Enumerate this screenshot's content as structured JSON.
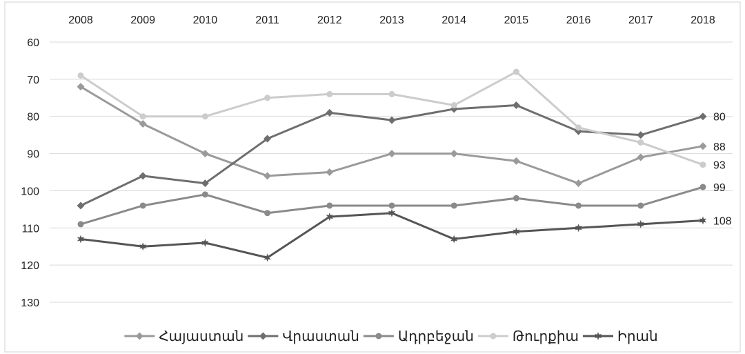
{
  "chart_data": {
    "type": "line",
    "x": [
      "2008",
      "2009",
      "2010",
      "2011",
      "2012",
      "2013",
      "2014",
      "2015",
      "2016",
      "2017",
      "2018"
    ],
    "y_ticks": [
      60,
      70,
      80,
      90,
      100,
      110,
      120,
      130
    ],
    "ylim": [
      60,
      130
    ],
    "y_inverted": true,
    "x_axis_position": "top",
    "grid": true,
    "legend_position": "bottom",
    "series": [
      {
        "name": "Հայաստան",
        "color": "#9a9a9a",
        "marker": "diamond",
        "values": [
          72,
          82,
          90,
          96,
          95,
          90,
          90,
          92,
          98,
          91,
          88
        ],
        "end_label": "88"
      },
      {
        "name": "Վրաստան",
        "color": "#6e6e6e",
        "marker": "diamond",
        "values": [
          104,
          96,
          98,
          86,
          79,
          81,
          78,
          77,
          84,
          85,
          80
        ],
        "end_label": "80"
      },
      {
        "name": "Ադրբեջան",
        "color": "#8a8a8a",
        "marker": "circle",
        "values": [
          109,
          104,
          101,
          106,
          104,
          104,
          104,
          102,
          104,
          104,
          99
        ],
        "end_label": "99"
      },
      {
        "name": "Թուրքիա",
        "color": "#cccccc",
        "marker": "circle",
        "values": [
          69,
          80,
          80,
          75,
          74,
          74,
          77,
          68,
          83,
          87,
          93
        ],
        "end_label": "93"
      },
      {
        "name": "Իրան",
        "color": "#555555",
        "marker": "star",
        "values": [
          113,
          115,
          114,
          118,
          107,
          106,
          113,
          111,
          110,
          109,
          108
        ],
        "end_label": "108"
      }
    ]
  }
}
